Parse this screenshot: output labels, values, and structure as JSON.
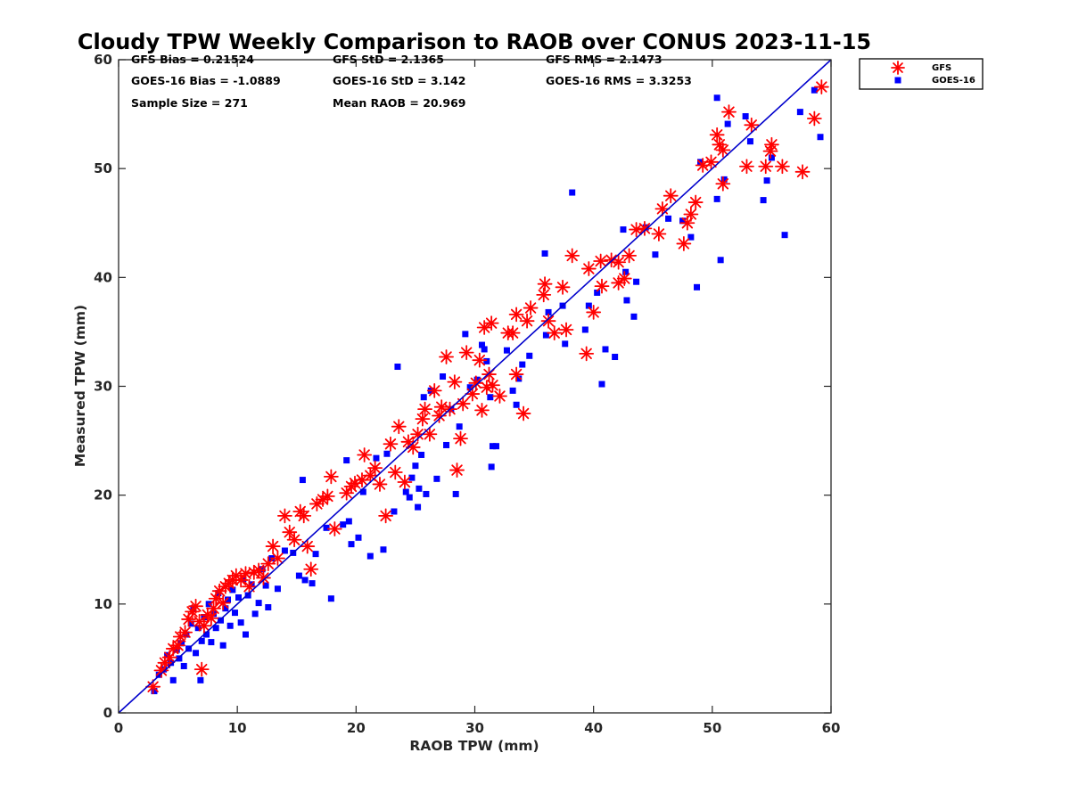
{
  "colors": {
    "gfs": "#ff0000",
    "goes": "#0000ff",
    "reference_line": "#0000cc",
    "axis": "#262626"
  },
  "stats": {
    "gfs_bias": "GFS Bias = 0.21524",
    "gfs_std": "GFS StD = 2.1365",
    "gfs_rms": "GFS RMS = 2.1473",
    "goes_bias": "GOES-16 Bias = -1.0889",
    "goes_std": "GOES-16 StD = 3.142",
    "goes_rms": "GOES-16 RMS = 3.3253",
    "sample_size": "Sample Size = 271",
    "mean_raob": "Mean RAOB = 20.969"
  },
  "chart_data": {
    "type": "scatter",
    "title": "Cloudy TPW Weekly Comparison to RAOB over CONUS 2023-11-15",
    "xlabel": "RAOB TPW (mm)",
    "ylabel": "Measured TPW (mm)",
    "xlim": [
      0,
      60
    ],
    "ylim": [
      0,
      60
    ],
    "x_ticks": [
      0,
      10,
      20,
      30,
      40,
      50,
      60
    ],
    "y_ticks": [
      0,
      10,
      20,
      30,
      40,
      50,
      60
    ],
    "grid": false,
    "legend_position": "outside-top-right",
    "reference_line": {
      "x": [
        0,
        60
      ],
      "y": [
        0,
        60
      ]
    },
    "series": [
      {
        "name": "GFS",
        "marker": "asterisk",
        "points": [
          [
            2.9,
            2.4
          ],
          [
            3.6,
            3.9
          ],
          [
            3.9,
            4.6
          ],
          [
            4.3,
            5.1
          ],
          [
            4.6,
            5.9
          ],
          [
            5.0,
            6.2
          ],
          [
            5.2,
            7.0
          ],
          [
            5.6,
            7.4
          ],
          [
            5.9,
            8.6
          ],
          [
            6.2,
            9.3
          ],
          [
            6.5,
            9.8
          ],
          [
            6.8,
            8.4
          ],
          [
            7.0,
            4.0
          ],
          [
            7.2,
            8.0
          ],
          [
            7.5,
            9.0
          ],
          [
            7.8,
            8.7
          ],
          [
            8.0,
            9.6
          ],
          [
            8.2,
            10.5
          ],
          [
            8.5,
            11.2
          ],
          [
            8.8,
            10.1
          ],
          [
            9.0,
            11.6
          ],
          [
            9.3,
            11.9
          ],
          [
            9.6,
            12.2
          ],
          [
            9.9,
            12.6
          ],
          [
            10.3,
            12.2
          ],
          [
            10.7,
            12.8
          ],
          [
            11.0,
            11.6
          ],
          [
            11.4,
            12.9
          ],
          [
            11.8,
            13.1
          ],
          [
            12.2,
            12.4
          ],
          [
            12.6,
            13.7
          ],
          [
            13.0,
            15.3
          ],
          [
            13.4,
            14.2
          ],
          [
            14.0,
            18.1
          ],
          [
            14.4,
            16.6
          ],
          [
            14.8,
            15.9
          ],
          [
            15.3,
            18.5
          ],
          [
            15.6,
            18.1
          ],
          [
            15.9,
            15.3
          ],
          [
            16.2,
            13.2
          ],
          [
            16.7,
            19.2
          ],
          [
            17.2,
            19.6
          ],
          [
            17.6,
            19.9
          ],
          [
            17.9,
            21.7
          ],
          [
            18.2,
            16.9
          ],
          [
            19.2,
            20.2
          ],
          [
            19.6,
            20.8
          ],
          [
            19.9,
            21.1
          ],
          [
            20.5,
            21.4
          ],
          [
            20.7,
            23.7
          ],
          [
            21.2,
            21.8
          ],
          [
            21.6,
            22.5
          ],
          [
            22.0,
            21.0
          ],
          [
            22.5,
            18.1
          ],
          [
            22.9,
            24.7
          ],
          [
            23.3,
            22.1
          ],
          [
            23.6,
            26.3
          ],
          [
            24.1,
            21.2
          ],
          [
            24.4,
            24.9
          ],
          [
            24.8,
            24.4
          ],
          [
            25.2,
            25.6
          ],
          [
            25.6,
            27.0
          ],
          [
            25.8,
            27.9
          ],
          [
            26.2,
            25.6
          ],
          [
            26.6,
            29.6
          ],
          [
            27.0,
            27.3
          ],
          [
            27.2,
            28.1
          ],
          [
            27.6,
            32.7
          ],
          [
            27.9,
            27.9
          ],
          [
            28.3,
            30.4
          ],
          [
            28.5,
            22.3
          ],
          [
            28.8,
            25.2
          ],
          [
            29.0,
            28.4
          ],
          [
            29.3,
            33.1
          ],
          [
            29.8,
            29.3
          ],
          [
            30.1,
            30.3
          ],
          [
            30.4,
            32.4
          ],
          [
            30.6,
            27.8
          ],
          [
            30.8,
            35.4
          ],
          [
            31.0,
            29.9
          ],
          [
            31.2,
            31.1
          ],
          [
            31.4,
            35.8
          ],
          [
            31.5,
            30.1
          ],
          [
            32.1,
            29.1
          ],
          [
            32.8,
            34.9
          ],
          [
            33.2,
            34.9
          ],
          [
            33.5,
            36.6
          ],
          [
            33.5,
            31.1
          ],
          [
            34.1,
            27.5
          ],
          [
            34.4,
            36.0
          ],
          [
            34.7,
            37.2
          ],
          [
            35.9,
            39.4
          ],
          [
            35.8,
            38.4
          ],
          [
            36.2,
            36.0
          ],
          [
            36.7,
            34.9
          ],
          [
            37.4,
            39.1
          ],
          [
            37.7,
            35.2
          ],
          [
            38.2,
            42.0
          ],
          [
            39.4,
            33.0
          ],
          [
            39.6,
            40.8
          ],
          [
            40.0,
            36.8
          ],
          [
            40.6,
            41.5
          ],
          [
            40.7,
            39.2
          ],
          [
            41.5,
            41.6
          ],
          [
            42.1,
            41.4
          ],
          [
            42.1,
            39.5
          ],
          [
            42.6,
            39.9
          ],
          [
            43.0,
            42.0
          ],
          [
            43.6,
            44.4
          ],
          [
            44.3,
            44.5
          ],
          [
            45.5,
            44.0
          ],
          [
            45.8,
            46.3
          ],
          [
            46.5,
            47.5
          ],
          [
            47.6,
            43.1
          ],
          [
            47.9,
            45.0
          ],
          [
            48.2,
            45.8
          ],
          [
            48.6,
            46.9
          ],
          [
            49.2,
            50.3
          ],
          [
            49.9,
            50.6
          ],
          [
            50.4,
            53.1
          ],
          [
            50.6,
            52.2
          ],
          [
            50.9,
            51.7
          ],
          [
            50.9,
            48.6
          ],
          [
            51.4,
            55.2
          ],
          [
            52.9,
            50.2
          ],
          [
            53.3,
            54.0
          ],
          [
            54.5,
            50.2
          ],
          [
            54.9,
            51.6
          ],
          [
            55.0,
            52.2
          ],
          [
            55.9,
            50.2
          ],
          [
            57.6,
            49.7
          ],
          [
            58.6,
            54.6
          ],
          [
            59.2,
            57.5
          ]
        ]
      },
      {
        "name": "GOES-16",
        "marker": "square",
        "points": [
          [
            3.0,
            2.0
          ],
          [
            3.4,
            3.5
          ],
          [
            3.8,
            4.0
          ],
          [
            4.1,
            5.3
          ],
          [
            4.4,
            4.6
          ],
          [
            4.6,
            3.0
          ],
          [
            4.9,
            5.8
          ],
          [
            5.1,
            5.0
          ],
          [
            5.3,
            6.4
          ],
          [
            5.5,
            4.3
          ],
          [
            5.7,
            7.2
          ],
          [
            5.9,
            5.9
          ],
          [
            6.1,
            8.2
          ],
          [
            6.3,
            9.6
          ],
          [
            6.5,
            5.5
          ],
          [
            6.7,
            7.8
          ],
          [
            6.9,
            3.0
          ],
          [
            7.0,
            6.6
          ],
          [
            7.2,
            8.8
          ],
          [
            7.4,
            7.2
          ],
          [
            7.6,
            10.0
          ],
          [
            7.8,
            6.5
          ],
          [
            8.0,
            9.1
          ],
          [
            8.2,
            7.8
          ],
          [
            8.4,
            11.0
          ],
          [
            8.6,
            8.5
          ],
          [
            8.8,
            6.2
          ],
          [
            9.0,
            9.6
          ],
          [
            9.2,
            10.4
          ],
          [
            9.4,
            8.0
          ],
          [
            9.6,
            11.3
          ],
          [
            9.8,
            9.2
          ],
          [
            10.1,
            10.6
          ],
          [
            10.3,
            8.3
          ],
          [
            10.5,
            12.3
          ],
          [
            10.7,
            7.2
          ],
          [
            10.9,
            10.8
          ],
          [
            11.2,
            11.8
          ],
          [
            11.5,
            9.1
          ],
          [
            11.8,
            10.1
          ],
          [
            12.1,
            13.2
          ],
          [
            12.4,
            11.7
          ],
          [
            12.6,
            9.7
          ],
          [
            12.9,
            14.2
          ],
          [
            13.4,
            11.4
          ],
          [
            14.0,
            14.9
          ],
          [
            14.7,
            14.7
          ],
          [
            15.2,
            12.6
          ],
          [
            15.5,
            21.4
          ],
          [
            15.7,
            12.2
          ],
          [
            16.3,
            11.9
          ],
          [
            16.6,
            14.6
          ],
          [
            17.5,
            17.0
          ],
          [
            17.9,
            10.5
          ],
          [
            18.9,
            17.3
          ],
          [
            19.2,
            23.2
          ],
          [
            19.4,
            17.6
          ],
          [
            19.6,
            15.5
          ],
          [
            20.2,
            16.1
          ],
          [
            20.6,
            20.3
          ],
          [
            21.2,
            14.4
          ],
          [
            21.7,
            23.4
          ],
          [
            22.3,
            15.0
          ],
          [
            22.6,
            23.8
          ],
          [
            23.2,
            18.5
          ],
          [
            23.5,
            31.8
          ],
          [
            24.2,
            20.3
          ],
          [
            24.5,
            19.8
          ],
          [
            24.7,
            21.6
          ],
          [
            25.0,
            22.7
          ],
          [
            25.2,
            18.9
          ],
          [
            25.3,
            20.6
          ],
          [
            25.5,
            23.7
          ],
          [
            25.7,
            29.0
          ],
          [
            25.9,
            20.1
          ],
          [
            26.3,
            29.6
          ],
          [
            26.8,
            21.5
          ],
          [
            27.3,
            30.9
          ],
          [
            27.6,
            24.6
          ],
          [
            28.0,
            27.9
          ],
          [
            28.4,
            20.1
          ],
          [
            28.7,
            26.3
          ],
          [
            29.2,
            34.8
          ],
          [
            29.6,
            29.9
          ],
          [
            30.2,
            30.6
          ],
          [
            30.6,
            33.8
          ],
          [
            30.8,
            33.4
          ],
          [
            31.0,
            32.3
          ],
          [
            31.3,
            29.0
          ],
          [
            31.4,
            22.6
          ],
          [
            31.5,
            24.5
          ],
          [
            31.8,
            24.5
          ],
          [
            32.7,
            33.3
          ],
          [
            33.2,
            29.6
          ],
          [
            33.5,
            28.3
          ],
          [
            33.7,
            30.7
          ],
          [
            34.0,
            32.0
          ],
          [
            34.6,
            32.8
          ],
          [
            35.9,
            42.2
          ],
          [
            36.0,
            34.7
          ],
          [
            36.2,
            36.8
          ],
          [
            37.4,
            37.4
          ],
          [
            37.6,
            33.9
          ],
          [
            38.2,
            47.8
          ],
          [
            39.3,
            35.2
          ],
          [
            39.6,
            37.4
          ],
          [
            40.3,
            38.6
          ],
          [
            40.7,
            30.2
          ],
          [
            41.0,
            33.4
          ],
          [
            41.8,
            32.7
          ],
          [
            42.5,
            44.4
          ],
          [
            42.7,
            40.5
          ],
          [
            42.8,
            37.9
          ],
          [
            43.4,
            36.4
          ],
          [
            43.6,
            39.6
          ],
          [
            44.4,
            44.6
          ],
          [
            45.2,
            42.1
          ],
          [
            46.3,
            45.4
          ],
          [
            47.5,
            45.2
          ],
          [
            48.2,
            43.7
          ],
          [
            48.7,
            39.1
          ],
          [
            49.0,
            50.6
          ],
          [
            50.4,
            56.5
          ],
          [
            50.4,
            47.2
          ],
          [
            50.7,
            41.6
          ],
          [
            51.0,
            49.0
          ],
          [
            51.3,
            54.1
          ],
          [
            52.8,
            54.8
          ],
          [
            53.2,
            52.5
          ],
          [
            54.3,
            47.1
          ],
          [
            54.6,
            48.9
          ],
          [
            55.0,
            51.0
          ],
          [
            56.1,
            43.9
          ],
          [
            57.4,
            55.2
          ],
          [
            58.6,
            57.2
          ],
          [
            59.1,
            52.9
          ]
        ]
      }
    ]
  }
}
